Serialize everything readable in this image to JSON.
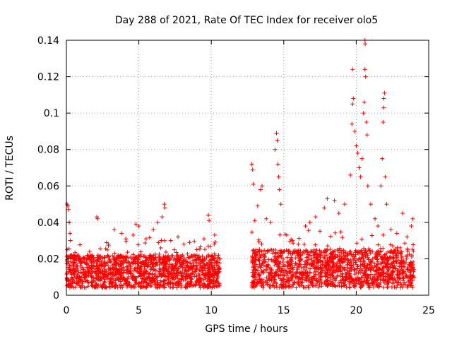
{
  "chart_data": {
    "type": "scatter",
    "title": "Day 288 of 2021, Rate Of TEC Index for receiver olo5",
    "xlabel": "GPS time / hours",
    "ylabel": "ROTI / TECUs",
    "xlim": [
      0,
      25
    ],
    "ylim": [
      0,
      0.14
    ],
    "xticks": [
      0,
      5,
      10,
      15,
      20,
      25
    ],
    "yticks": [
      0,
      0.02,
      0.04,
      0.06,
      0.08,
      0.1,
      0.12,
      0.14
    ],
    "xtick_labels": [
      "0",
      "5",
      "10",
      "15",
      "20",
      "25"
    ],
    "ytick_labels": [
      "0",
      "0.02",
      "0.04",
      "0.06",
      "0.08",
      "0.1",
      "0.12",
      "0.14"
    ],
    "grid": true,
    "marker": "+",
    "color": "#ff0000",
    "segments": [
      {
        "x_start": 0.0,
        "x_end": 10.6,
        "typical_range": [
          0.004,
          0.022
        ]
      },
      {
        "x_start": 12.8,
        "x_end": 24.0,
        "typical_range": [
          0.004,
          0.025
        ]
      }
    ],
    "series": [
      {
        "points": [
          [
            0.05,
            0.05
          ],
          [
            0.1,
            0.049
          ],
          [
            0.15,
            0.047
          ],
          [
            0.05,
            0.025
          ],
          [
            0.2,
            0.04
          ],
          [
            0.25,
            0.034
          ],
          [
            0.5,
            0.018
          ],
          [
            0.8,
            0.022
          ],
          [
            1.2,
            0.02
          ],
          [
            1.6,
            0.024
          ],
          [
            2.1,
            0.043
          ],
          [
            2.15,
            0.042
          ],
          [
            2.5,
            0.02
          ],
          [
            2.9,
            0.028
          ],
          [
            3.3,
            0.036
          ],
          [
            3.8,
            0.034
          ],
          [
            4.1,
            0.031
          ],
          [
            4.6,
            0.033
          ],
          [
            4.8,
            0.039
          ],
          [
            5.0,
            0.038
          ],
          [
            5.5,
            0.031
          ],
          [
            6.0,
            0.036
          ],
          [
            6.3,
            0.04
          ],
          [
            6.6,
            0.043
          ],
          [
            6.75,
            0.05
          ],
          [
            6.8,
            0.048
          ],
          [
            7.2,
            0.03
          ],
          [
            7.7,
            0.032
          ],
          [
            8.1,
            0.028
          ],
          [
            8.5,
            0.029
          ],
          [
            9.0,
            0.025
          ],
          [
            9.5,
            0.031
          ],
          [
            9.8,
            0.044
          ],
          [
            9.85,
            0.041
          ],
          [
            10.2,
            0.028
          ],
          [
            10.5,
            0.022
          ],
          [
            12.8,
            0.072
          ],
          [
            12.85,
            0.069
          ],
          [
            12.9,
            0.061
          ],
          [
            13.0,
            0.041
          ],
          [
            13.2,
            0.049
          ],
          [
            13.4,
            0.058
          ],
          [
            13.5,
            0.06
          ],
          [
            13.8,
            0.042
          ],
          [
            14.1,
            0.04
          ],
          [
            14.4,
            0.08
          ],
          [
            14.5,
            0.089
          ],
          [
            14.55,
            0.085
          ],
          [
            14.6,
            0.072
          ],
          [
            14.65,
            0.065
          ],
          [
            14.7,
            0.058
          ],
          [
            14.8,
            0.05
          ],
          [
            15.2,
            0.033
          ],
          [
            15.6,
            0.03
          ],
          [
            16.0,
            0.028
          ],
          [
            16.5,
            0.038
          ],
          [
            16.8,
            0.04
          ],
          [
            17.2,
            0.043
          ],
          [
            17.8,
            0.048
          ],
          [
            18.0,
            0.053
          ],
          [
            18.5,
            0.052
          ],
          [
            18.8,
            0.045
          ],
          [
            19.2,
            0.05
          ],
          [
            19.6,
            0.066
          ],
          [
            19.7,
            0.094
          ],
          [
            19.75,
            0.105
          ],
          [
            19.8,
            0.108
          ],
          [
            19.75,
            0.124
          ],
          [
            19.9,
            0.09
          ],
          [
            20.0,
            0.082
          ],
          [
            20.1,
            0.078
          ],
          [
            20.2,
            0.07
          ],
          [
            20.3,
            0.065
          ],
          [
            20.4,
            0.075
          ],
          [
            20.5,
            0.1
          ],
          [
            20.55,
            0.106
          ],
          [
            20.6,
            0.14
          ],
          [
            20.62,
            0.138
          ],
          [
            20.6,
            0.124
          ],
          [
            20.65,
            0.12
          ],
          [
            20.7,
            0.095
          ],
          [
            20.75,
            0.088
          ],
          [
            20.8,
            0.06
          ],
          [
            21.0,
            0.05
          ],
          [
            21.3,
            0.042
          ],
          [
            21.5,
            0.038
          ],
          [
            21.7,
            0.06
          ],
          [
            21.8,
            0.075
          ],
          [
            21.85,
            0.095
          ],
          [
            21.9,
            0.103
          ],
          [
            21.9,
            0.108
          ],
          [
            21.95,
            0.111
          ],
          [
            22.0,
            0.065
          ],
          [
            22.1,
            0.05
          ],
          [
            22.4,
            0.036
          ],
          [
            22.8,
            0.034
          ],
          [
            23.2,
            0.045
          ],
          [
            23.5,
            0.032
          ],
          [
            23.8,
            0.038
          ],
          [
            23.9,
            0.042
          ]
        ]
      }
    ]
  }
}
